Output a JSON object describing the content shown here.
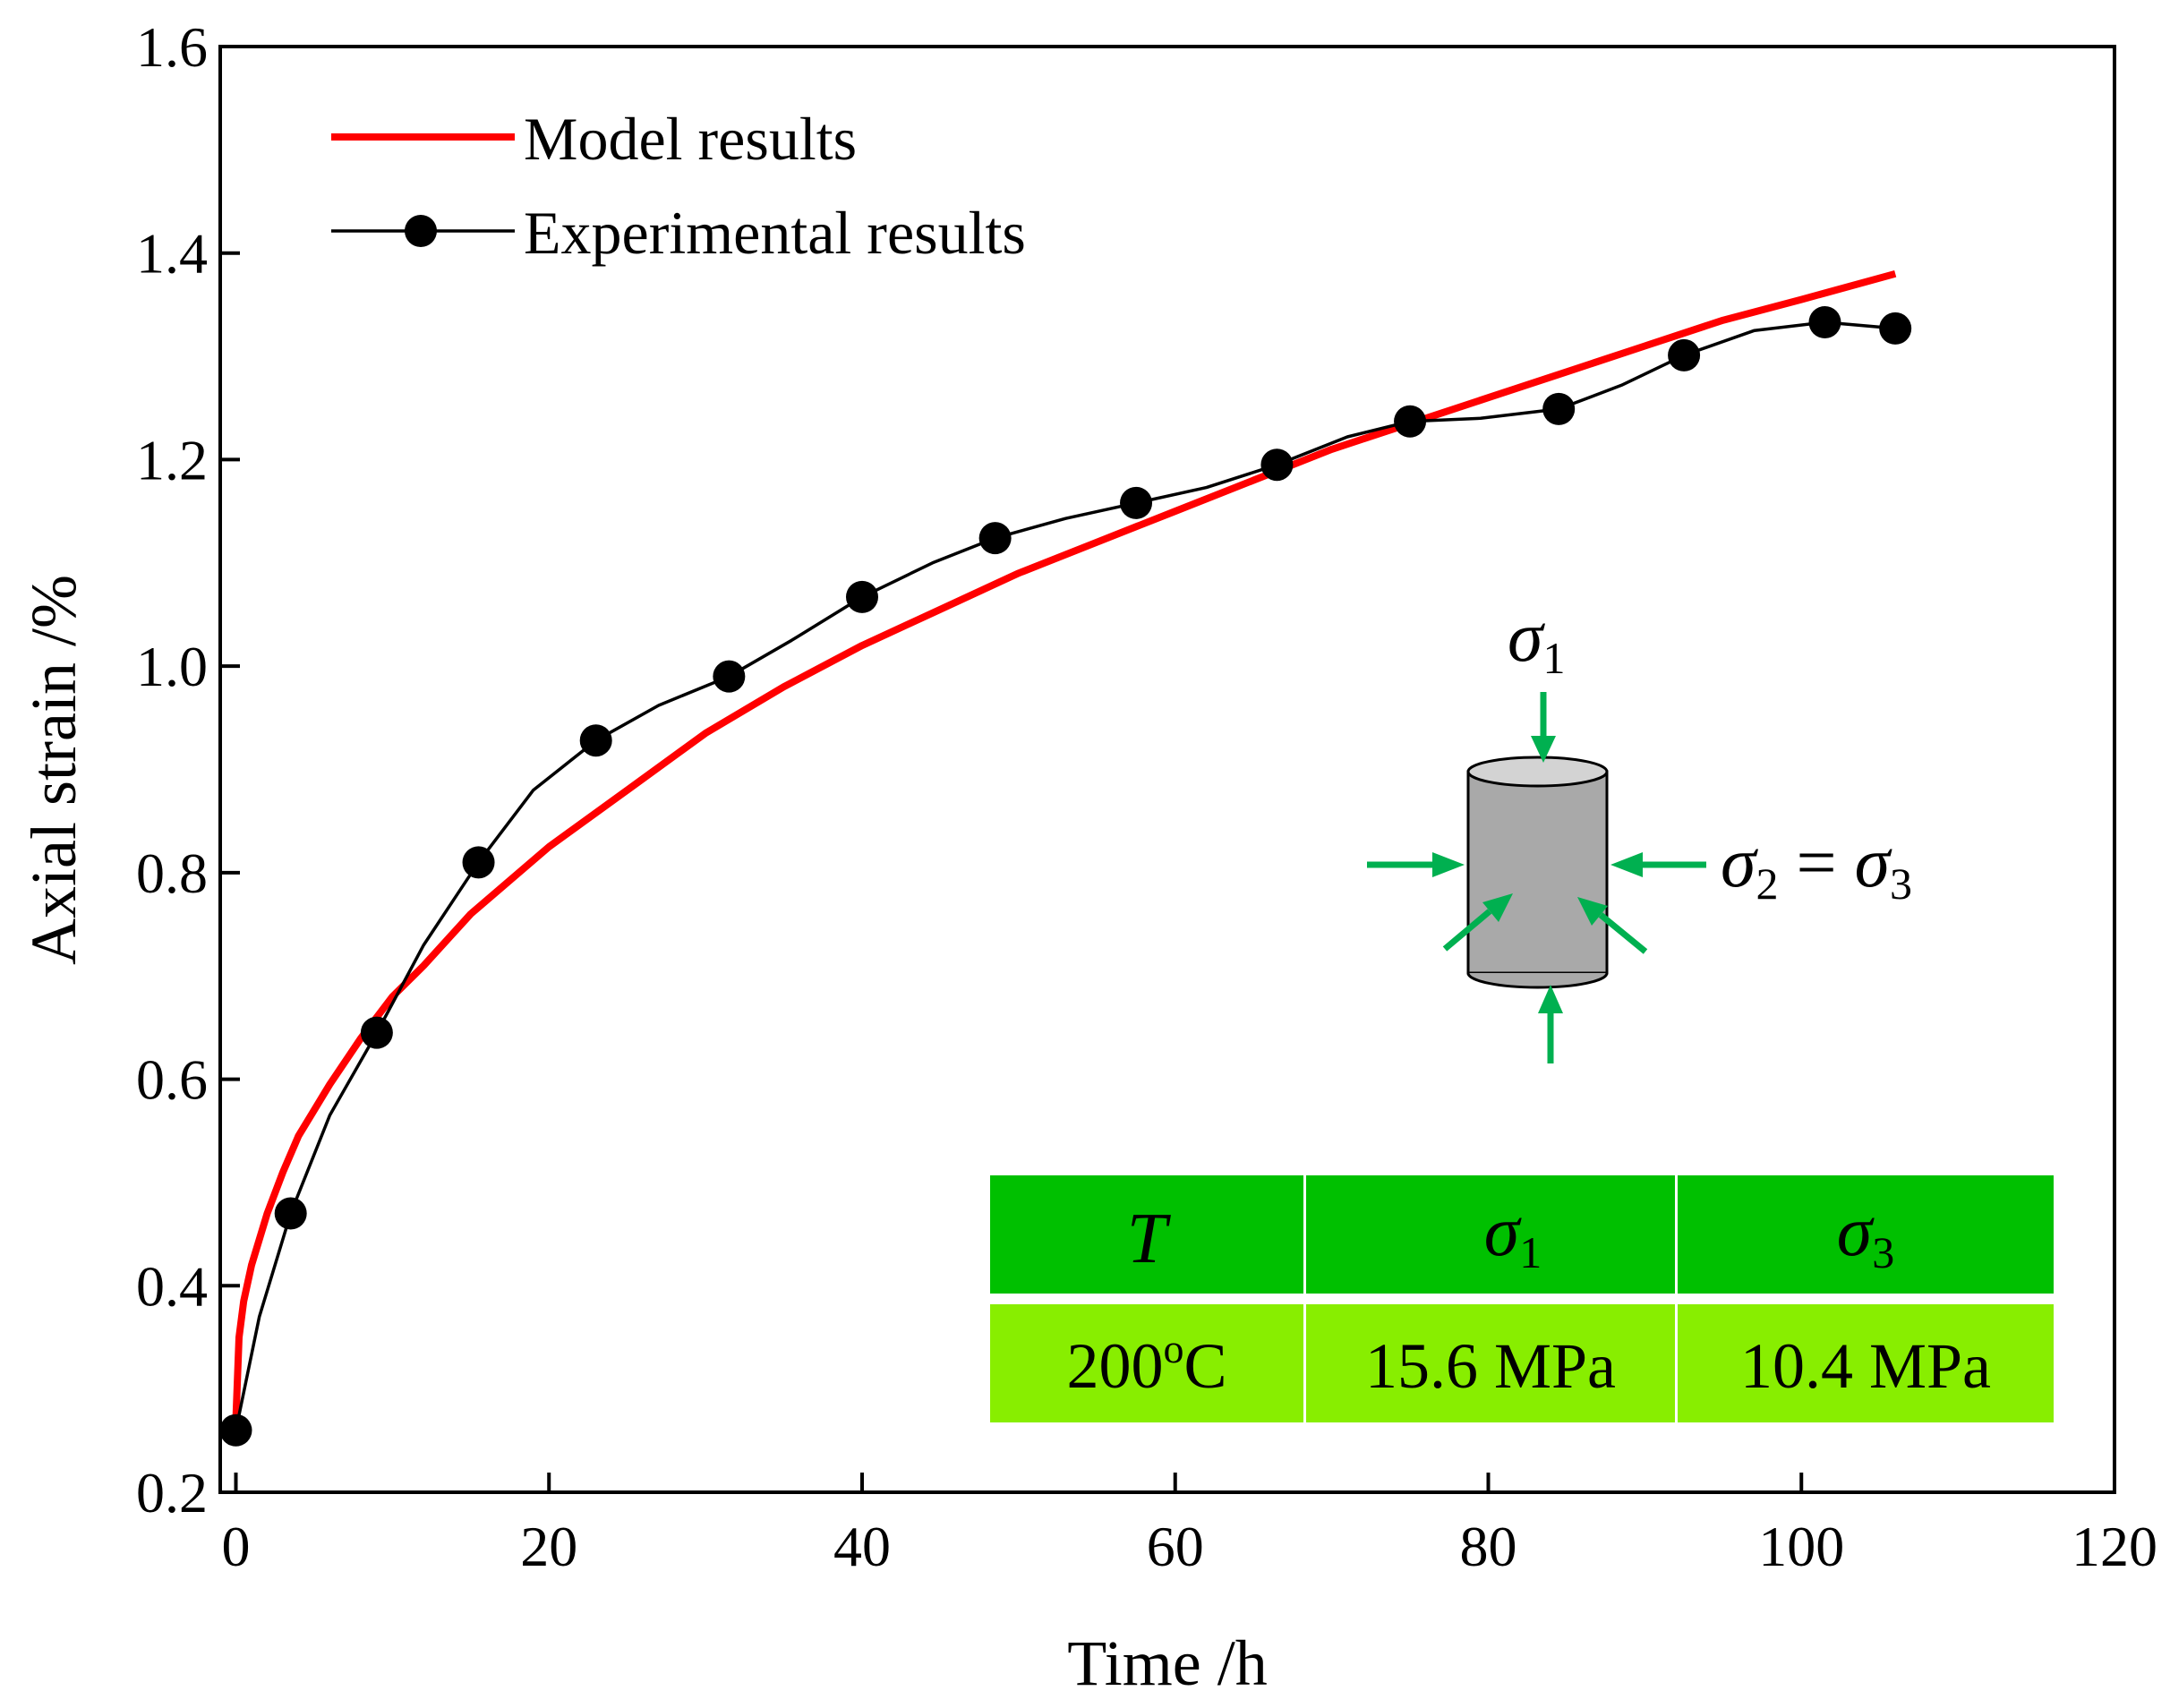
{
  "chart_data": {
    "type": "line",
    "title": "",
    "xlabel": "Time /h",
    "ylabel": "Axial strain /%",
    "xlim": [
      -1,
      120
    ],
    "ylim": [
      0.2,
      1.6
    ],
    "x_ticks": [
      0,
      20,
      40,
      60,
      80,
      100,
      120
    ],
    "y_ticks": [
      0.2,
      0.4,
      0.6,
      0.8,
      1.0,
      1.2,
      1.4,
      1.6
    ],
    "x_tick_labels": [
      "0",
      "20",
      "40",
      "60",
      "80",
      "100",
      "120"
    ],
    "y_tick_labels": [
      "0.2",
      "0.4",
      "0.6",
      "0.8",
      "1.0",
      "1.2",
      "1.4",
      "1.6"
    ],
    "legend_position": "top-left",
    "series": [
      {
        "name": "Model results",
        "color": "#ff0000",
        "style": "line",
        "x": [
          0,
          0.2,
          0.5,
          1,
          2,
          3,
          4,
          5,
          6,
          8,
          10,
          12,
          15,
          20,
          25,
          30,
          35,
          40,
          45,
          50,
          55,
          60,
          65,
          70,
          75,
          80,
          85,
          90,
          95,
          100,
          106
        ],
        "y": [
          0.27,
          0.35,
          0.385,
          0.42,
          0.47,
          0.51,
          0.545,
          0.57,
          0.595,
          0.64,
          0.68,
          0.71,
          0.76,
          0.825,
          0.88,
          0.935,
          0.98,
          1.02,
          1.055,
          1.09,
          1.12,
          1.15,
          1.18,
          1.21,
          1.235,
          1.26,
          1.285,
          1.31,
          1.335,
          1.355,
          1.38
        ]
      },
      {
        "name": "Experimental results",
        "color": "#000000",
        "style": "line-markers",
        "x": [
          0,
          1.5,
          3.5,
          6,
          9,
          12,
          15.5,
          19,
          23,
          27,
          31.5,
          35.5,
          40,
          44.5,
          48.5,
          53,
          57.5,
          62,
          66.5,
          71,
          75,
          79.5,
          84.5,
          88.5,
          92.5,
          97,
          101.5,
          106
        ],
        "y": [
          0.26,
          0.37,
          0.47,
          0.565,
          0.645,
          0.73,
          0.81,
          0.88,
          0.928,
          0.962,
          0.99,
          1.025,
          1.067,
          1.1,
          1.124,
          1.143,
          1.158,
          1.173,
          1.195,
          1.222,
          1.237,
          1.24,
          1.249,
          1.272,
          1.301,
          1.325,
          1.333,
          1.327
        ],
        "marker_x": [
          0,
          3.5,
          9,
          15.5,
          23,
          31.5,
          40,
          48.5,
          57.5,
          66.5,
          75,
          84.5,
          92.5,
          101.5,
          106
        ],
        "marker_y": [
          0.26,
          0.47,
          0.645,
          0.81,
          0.928,
          0.99,
          1.067,
          1.124,
          1.158,
          1.195,
          1.237,
          1.249,
          1.301,
          1.333,
          1.327
        ]
      }
    ],
    "annotations": {
      "stress_top": {
        "symbol": "σ",
        "sub": "1"
      },
      "stress_side": {
        "symbol": "σ",
        "sub": "2",
        "equals": " = ",
        "symbol2": "σ",
        "sub2": "3"
      },
      "table": {
        "headers": [
          {
            "symbol": "T",
            "sub": ""
          },
          {
            "symbol": "σ",
            "sub": "1"
          },
          {
            "symbol": "σ",
            "sub": "3"
          }
        ],
        "values": [
          {
            "main": "200",
            "sup": "o",
            "tail": "C"
          },
          {
            "main": "15.6 MPa",
            "sup": "",
            "tail": ""
          },
          {
            "main": "10.4 MPa",
            "sup": "",
            "tail": ""
          }
        ]
      }
    },
    "colors": {
      "arrow": "#00b050",
      "cylinder": "#a9a9a9",
      "cylinder_top": "#d3d3d3",
      "table_header": "#00c000",
      "table_body": "#88ee00"
    }
  }
}
